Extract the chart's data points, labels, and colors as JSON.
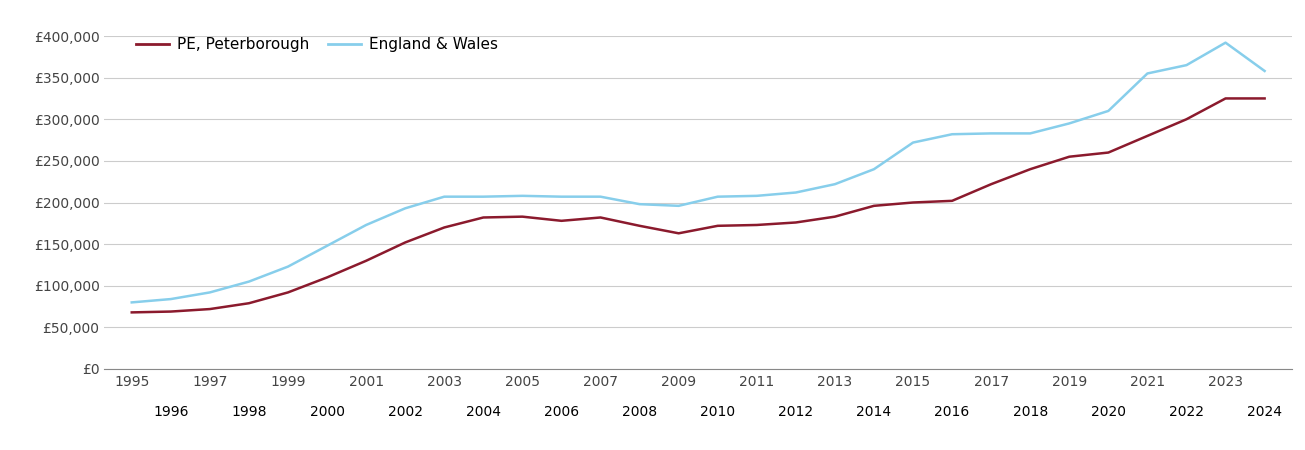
{
  "years": [
    1995,
    1996,
    1997,
    1998,
    1999,
    2000,
    2001,
    2002,
    2003,
    2004,
    2005,
    2006,
    2007,
    2008,
    2009,
    2010,
    2011,
    2012,
    2013,
    2014,
    2015,
    2016,
    2017,
    2018,
    2019,
    2020,
    2021,
    2022,
    2023,
    2024
  ],
  "peterborough": [
    68000,
    69000,
    72000,
    79000,
    92000,
    110000,
    130000,
    152000,
    170000,
    182000,
    183000,
    178000,
    182000,
    172000,
    163000,
    172000,
    173000,
    176000,
    183000,
    196000,
    200000,
    202000,
    222000,
    240000,
    255000,
    260000,
    280000,
    300000,
    325000,
    325000
  ],
  "england_wales": [
    80000,
    84000,
    92000,
    105000,
    123000,
    148000,
    173000,
    193000,
    207000,
    207000,
    208000,
    207000,
    207000,
    198000,
    196000,
    207000,
    208000,
    212000,
    222000,
    240000,
    272000,
    282000,
    283000,
    283000,
    295000,
    310000,
    355000,
    365000,
    392000,
    358000
  ],
  "line_color_peterborough": "#8B1A2D",
  "line_color_england": "#87CEEB",
  "legend_label_peterborough": "PE, Peterborough",
  "legend_label_england": "England & Wales",
  "ylim": [
    0,
    400000
  ],
  "yticks": [
    0,
    50000,
    100000,
    150000,
    200000,
    250000,
    300000,
    350000,
    400000
  ],
  "ytick_labels": [
    "£0",
    "£50,000",
    "£100,000",
    "£150,000",
    "£200,000",
    "£250,000",
    "£300,000",
    "£350,000",
    "£400,000"
  ],
  "background_color": "#ffffff",
  "grid_color": "#cccccc",
  "line_width": 1.8,
  "font_size_ticks": 10,
  "font_size_legend": 11
}
